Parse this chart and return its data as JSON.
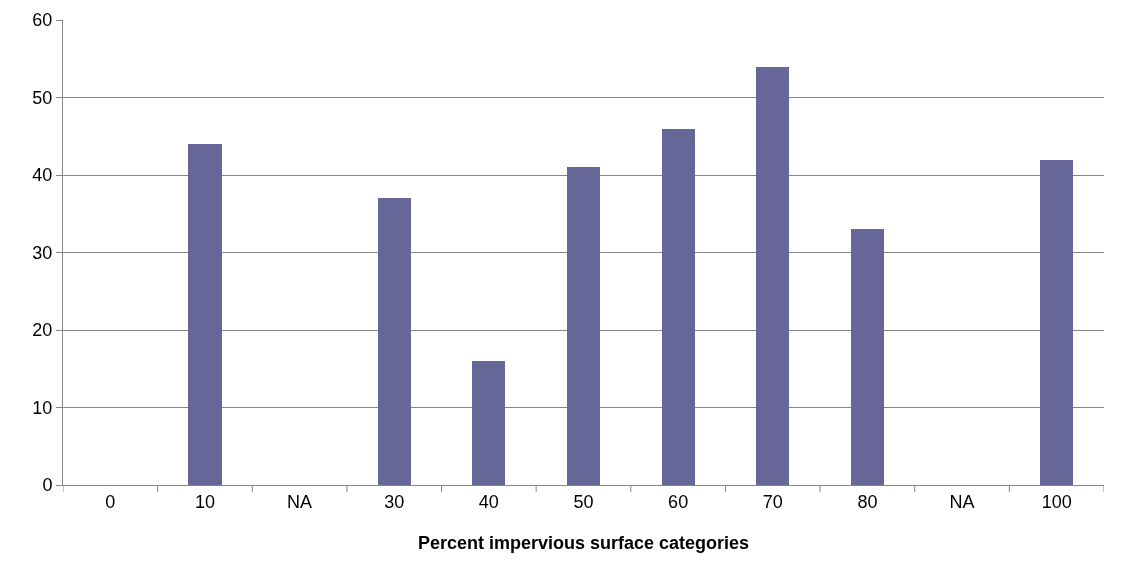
{
  "chart_data": {
    "type": "bar",
    "xlabel": "Percent impervious surface categories",
    "categories": [
      "0",
      "10",
      "NA",
      "30",
      "40",
      "50",
      "60",
      "70",
      "80",
      "NA",
      "100"
    ],
    "values": [
      0,
      44,
      0,
      37,
      16,
      41,
      46,
      54,
      33,
      0,
      42
    ],
    "color": "#666699",
    "ylim": [
      0,
      60
    ],
    "yticks": [
      0,
      10,
      20,
      30,
      40,
      50,
      60
    ],
    "grid": "y",
    "legend": false
  }
}
